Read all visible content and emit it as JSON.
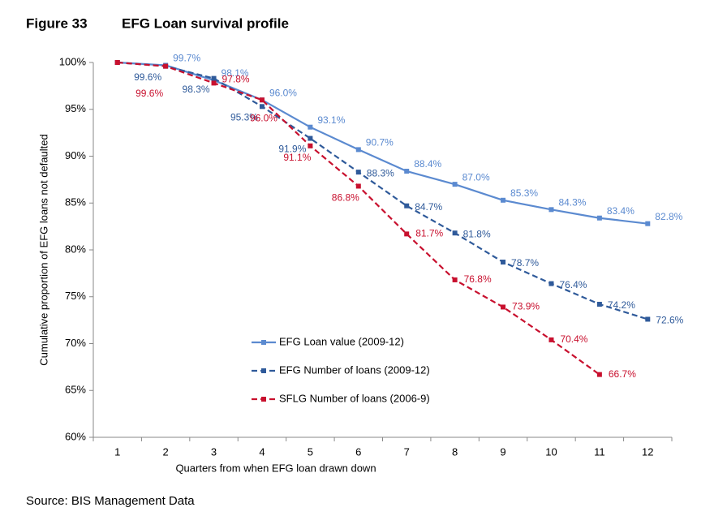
{
  "header": {
    "figure": "Figure 33",
    "title": "EFG Loan survival profile"
  },
  "chart_data": {
    "type": "line",
    "categories": [
      "1",
      "2",
      "3",
      "4",
      "5",
      "6",
      "7",
      "8",
      "9",
      "10",
      "11",
      "12"
    ],
    "xlabel": "Quarters from when EFG loan drawn down",
    "ylabel": "Cumulative proportion of EFG loans not defaulted",
    "ylim": [
      60,
      100
    ],
    "yticks": [
      {
        "value": 60,
        "label": "60%"
      },
      {
        "value": 65,
        "label": "65%"
      },
      {
        "value": 70,
        "label": "70%"
      },
      {
        "value": 75,
        "label": "75%"
      },
      {
        "value": 80,
        "label": "80%"
      },
      {
        "value": 85,
        "label": "85%"
      },
      {
        "value": 90,
        "label": "90%"
      },
      {
        "value": 95,
        "label": "95%"
      },
      {
        "value": 100,
        "label": "100%"
      }
    ],
    "series": [
      {
        "name": "EFG Loan value (2009-12)",
        "color": "#5b8ad0",
        "dash": false,
        "values": [
          100,
          99.7,
          98.1,
          96.0,
          93.1,
          90.7,
          88.4,
          87.0,
          85.3,
          84.3,
          83.4,
          82.8
        ],
        "value_labels": [
          null,
          "99.7%",
          "98.1%",
          "96.0%",
          "93.1%",
          "90.7%",
          "88.4%",
          "87.0%",
          "85.3%",
          "84.3%",
          "83.4%",
          "82.8%"
        ]
      },
      {
        "name": "EFG Number of loans (2009-12)",
        "color": "#2f5a9a",
        "dash": true,
        "values": [
          100,
          99.6,
          98.3,
          95.3,
          91.9,
          88.3,
          84.7,
          81.8,
          78.7,
          76.4,
          74.2,
          72.6
        ],
        "value_labels": [
          null,
          "99.6%",
          "98.3%",
          "95.3%",
          "91.9%",
          "88.3%",
          "84.7%",
          "81.8%",
          "78.7%",
          "76.4%",
          "74.2%",
          "72.6%"
        ]
      },
      {
        "name": "SFLG Number of loans (2006-9)",
        "color": "#c8102e",
        "dash": true,
        "values": [
          100,
          99.6,
          97.8,
          96.0,
          91.1,
          86.8,
          81.7,
          76.8,
          73.9,
          70.4,
          66.7,
          null
        ],
        "value_labels": [
          null,
          "99.6%",
          "97.8%",
          "96.0%",
          "91.1%",
          "86.8%",
          "81.7%",
          "76.8%",
          "73.9%",
          "70.4%",
          "66.7%",
          null
        ]
      }
    ]
  },
  "source": "Source: BIS Management Data"
}
